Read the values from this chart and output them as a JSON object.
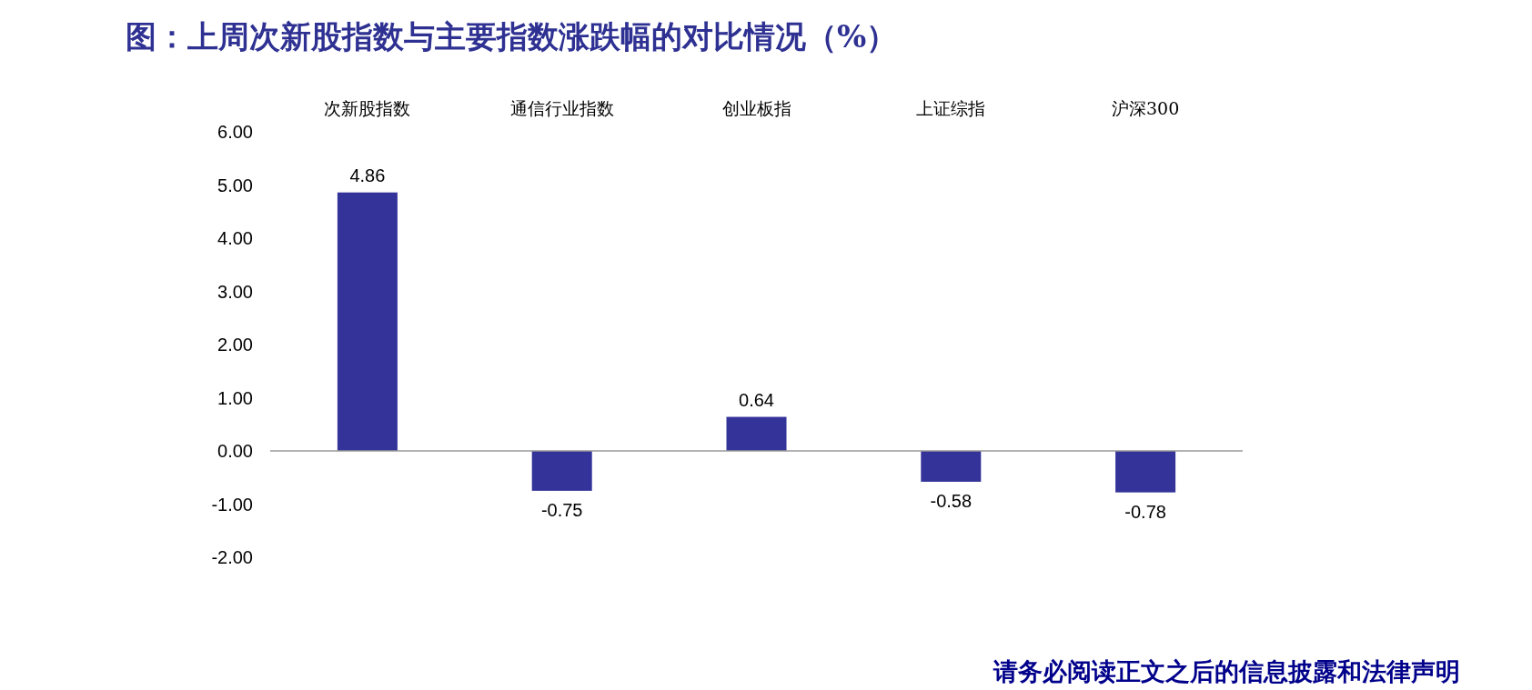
{
  "chart_data": {
    "type": "bar",
    "title": "图：上周次新股指数与主要指数涨跌幅的对比情况（%）",
    "categories": [
      "次新股指数",
      "通信行业指数",
      "创业板指",
      "上证综指",
      "沪深300"
    ],
    "values": [
      4.86,
      -0.75,
      0.64,
      -0.58,
      -0.78
    ],
    "color": "#333399",
    "data_labels": true,
    "ylim": [
      -2,
      6
    ],
    "yticks": [
      {
        "value": -2,
        "label": "-2.00"
      },
      {
        "value": -1,
        "label": "-1.00"
      },
      {
        "value": 0,
        "label": "0.00"
      },
      {
        "value": 1,
        "label": "1.00"
      },
      {
        "value": 2,
        "label": "2.00"
      },
      {
        "value": 3,
        "label": "3.00"
      },
      {
        "value": 4,
        "label": "4.00"
      },
      {
        "value": 5,
        "label": "5.00"
      },
      {
        "value": 6,
        "label": "6.00"
      }
    ],
    "annotations": [
      "请务必阅读正文之后的信息披露和法律声明"
    ]
  }
}
